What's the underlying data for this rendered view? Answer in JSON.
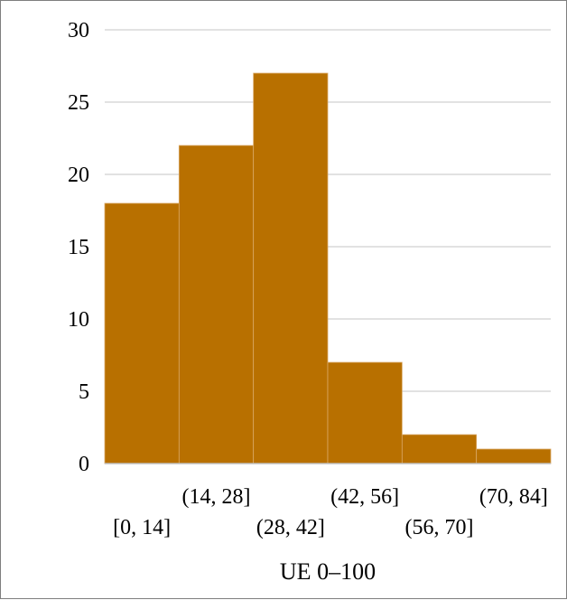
{
  "chart_data": {
    "type": "bar",
    "subtype": "histogram",
    "categories": [
      "[0, 14]",
      "(14, 28]",
      "(28, 42]",
      "(42, 56]",
      "(56, 70]",
      "(70, 84]"
    ],
    "values": [
      18,
      22,
      27,
      7,
      2,
      1
    ],
    "title": "",
    "xlabel": "UE 0–100",
    "ylabel": "",
    "ylim": [
      0,
      30
    ],
    "yticks": [
      0,
      5,
      10,
      15,
      20,
      25,
      30
    ],
    "grid": "horizontal",
    "bar_color": "#B87000",
    "gridline_color": "#d9d9d9"
  }
}
